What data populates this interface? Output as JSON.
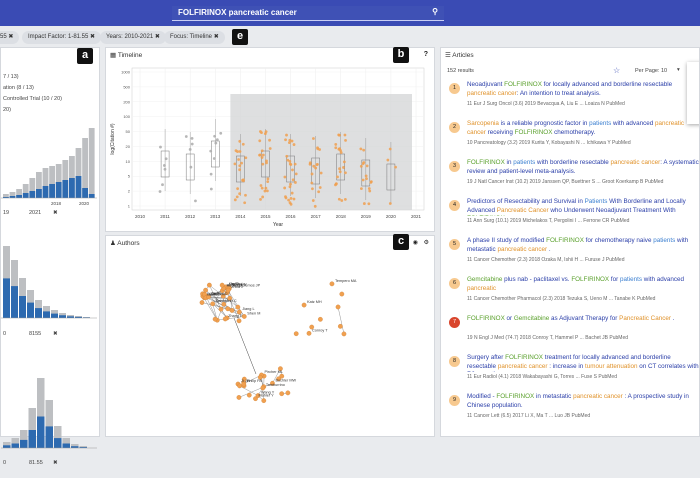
{
  "search": {
    "query": "FOLFIRINOX pancreatic cancer"
  },
  "filters": {
    "chip0": "55",
    "chip1": "Impact Factor: 1-81.55",
    "chip2": "Years: 2010-2021",
    "chip3": "Focus: Timeline"
  },
  "badges": {
    "a": "a",
    "b": "b",
    "c": "c",
    "e": "e"
  },
  "left": {
    "stats": [
      "7 / 13)",
      "ation (8 / 13)",
      "Controlled Trial (10 / 20)",
      "20)"
    ],
    "range1": [
      "19",
      "2021"
    ],
    "range2": [
      "0",
      "8155"
    ],
    "range3": [
      "0",
      "81.55"
    ],
    "year_ticks": [
      "2018",
      "2020"
    ]
  },
  "timeline": {
    "title": "Timeline",
    "ylabel": "log(Citation #)",
    "xlabel": "Year",
    "help": "?",
    "years": [
      "2010",
      "2011",
      "2012",
      "2013",
      "2014",
      "2015",
      "2016",
      "2017",
      "2018",
      "2019",
      "2020",
      "2021"
    ],
    "yticks": [
      "1000",
      "500",
      "200",
      "100",
      "50",
      "20",
      "10",
      "5",
      "2",
      "1"
    ]
  },
  "authors": {
    "title": "Authors",
    "names": [
      "Hu Jie",
      "Lin Shui",
      "Springfeld C",
      "Hackert T",
      "Neoptolemos JP",
      "Shen M",
      "Jiang L",
      "Wang W",
      "Zhou J",
      "Xie Y",
      "Zhang L",
      "Strobel O",
      "Mahler Y",
      "Wang Y",
      "Buchler MW",
      "Pircher ML",
      "Philip PA",
      "Ji Jin",
      "Tamburrino",
      "Tempero MA",
      "Katz MH",
      "Conroy T",
      "Ducreux M",
      "Kim D",
      "Zeh HJ",
      "Ke Y"
    ]
  },
  "articles": {
    "title": "Articles",
    "count": "152 results",
    "per_page": "Per Page: 10",
    "items": [
      {
        "n": "1",
        "title": "Neoadjuvant FOLFIRINOX for locally advanced and borderline resectable pancreatic cancer: An intention to treat analysis.",
        "meta": "11  Eur J Surg Oncol (3.6)   2019   Bevacqua A, Liu E ... Loaiza N   PubMed"
      },
      {
        "n": "2",
        "title": "Sarcopenia is a reliable prognostic factor in patients with advanced pancreatic cancer receiving FOLFIRINOX chemotherapy.",
        "meta": "10  Pancreatology (3.2)   2019   Kurita Y, Kobayashi N ... Ichikawa Y   PubMed"
      },
      {
        "n": "3",
        "title": "FOLFIRINOX in patients with borderline resectable pancreatic cancer: A systematic review and patient-level meta-analysis.",
        "meta": "19  J Natl Cancer Inst (10.2)   2019   Janssen QP, Buettner S ... Groot Koerkamp B   PubMed"
      },
      {
        "n": "4",
        "title": "Predictors of Resectability and Survival in Patients With Borderline and Locally Advanced Pancreatic Cancer who Underwent Neoadjuvant Treatment With FOLFIRINOX .",
        "meta": "11  Ann Surg (10.1)   2019   Michelakos T, Pergolini I ... Ferrone CR   PubMed"
      },
      {
        "n": "5",
        "title": "A phase II study of modified FOLFIRINOX for chemotherapy naive patients with metastatic pancreatic cancer .",
        "meta": "11  Cancer Chemother (2.3)   2018   Ozaka M, Ishii H ... Furuse J   PubMed"
      },
      {
        "n": "6",
        "title": "Gemcitabine plus nab - paclitaxel vs. FOLFIRINOX for patients with advanced pancreatic",
        "meta": "11  Cancer Chemother Pharmacol (2.3)   2018   Tezuka S, Ueno M ... Tanabe K   PubMed"
      },
      {
        "n": "7",
        "title": "FOLFIRINOX or Gemcitabine as Adjuvant Therapy for Pancreatic Cancer .",
        "meta": "19  N Engl J Med (74.7)   2018   Conroy T, Hammel P ... Bachet JB   PubMed"
      },
      {
        "n": "8",
        "title": "Surgery after FOLFIRINOX treatment for locally advanced and borderline resectable pancreatic cancer : increase in tumour attenuation on CT correlates with R0 resection.",
        "meta": "11  Eur Radiol (4.1)   2018   Wakabayashi G, Torres ... Fuse S   PubMed"
      },
      {
        "n": "9",
        "title": "Modified - FOLFIRINOX in metastatic pancreatic cancer : A prospective study in Chinese population.",
        "meta": "11  Cancer Lett (6.5)   2017   Li X, Ma T ... Luo JB   PubMed"
      }
    ]
  },
  "colors": {
    "accent": "#3f51b5",
    "orange": "#f0a050",
    "blue": "#2d6ab0",
    "gray": "#b9bcc0",
    "red": "#d9452c"
  }
}
